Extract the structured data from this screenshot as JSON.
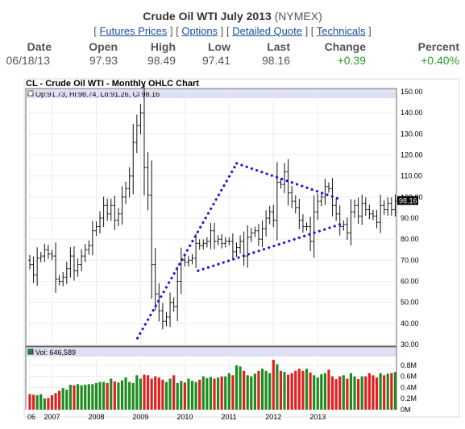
{
  "header": {
    "title": "Crude Oil WTI July 2013",
    "exchange": "(NYMEX)",
    "links": [
      "Futures Prices",
      "Options",
      "Detailed Quote",
      "Technicals"
    ]
  },
  "quote": {
    "headers": [
      "Date",
      "Open",
      "High",
      "Low",
      "Last",
      "Change",
      "Percent"
    ],
    "values": [
      "06/18/13",
      "97.93",
      "98.49",
      "97.41",
      "98.16",
      "+0.39",
      "+0.40%"
    ],
    "positive_color": "#2a9b2a"
  },
  "chart_data": [
    {
      "type": "ohlc",
      "title": "CL - Crude Oil WTI - Monthly OHLC Chart",
      "info": "Op:91.73, Hi:98.74, Lo:91.26, Cl:98.16",
      "last_price_label": "98.16",
      "ylim": [
        30,
        150
      ],
      "yticks": [
        "150.00",
        "140.00",
        "130.00",
        "120.00",
        "110.00",
        "100.00",
        "90.00",
        "80.00",
        "70.00",
        "60.00",
        "50.00",
        "40.00",
        "30.00"
      ],
      "xticks": [
        "06",
        "2007",
        "2008",
        "2009",
        "2010",
        "2011",
        "2012",
        "2013"
      ],
      "close": [
        68,
        63,
        71,
        72,
        75,
        73,
        72,
        61,
        60,
        62,
        66,
        72,
        65,
        68,
        72,
        75,
        77,
        84,
        86,
        90,
        96,
        92,
        96,
        89,
        92,
        100,
        104,
        110,
        126,
        134,
        140,
        114,
        101,
        68,
        54,
        46,
        41,
        43,
        50,
        48,
        60,
        70,
        69,
        70,
        71,
        78,
        77,
        78,
        79,
        84,
        79,
        80,
        78,
        79,
        79,
        74,
        76,
        79,
        72,
        81,
        83,
        84,
        80,
        85,
        90,
        93,
        89,
        107,
        106,
        112,
        102,
        98,
        95,
        89,
        86,
        86,
        79,
        93,
        98,
        100,
        105,
        104,
        96,
        92,
        86,
        87,
        83,
        93,
        96,
        91,
        97,
        94,
        92,
        91,
        88,
        96,
        94,
        97,
        94,
        98
      ],
      "trendlines": [
        {
          "from": [
            33,
            2008.93
          ],
          "to": [
            116,
            2011.17
          ]
        },
        {
          "from": [
            116,
            2011.17
          ],
          "to": [
            99,
            2013.5
          ]
        },
        {
          "from": [
            65,
            2010.3
          ],
          "to": [
            87,
            2013.5
          ]
        }
      ],
      "trendline_color": "#1a1ad6",
      "up_color": "#1e8c1e",
      "down_color": "#e02020"
    },
    {
      "type": "bar",
      "title": "Vol: 646,589",
      "ylim": [
        0,
        0.9
      ],
      "yticks": [
        "0.8M",
        "0.6M",
        "0.4M",
        "0.2M",
        "0M"
      ],
      "values": [
        0.28,
        0.27,
        0.26,
        0.28,
        0.2,
        0.21,
        0.26,
        0.3,
        0.34,
        0.39,
        0.36,
        0.45,
        0.44,
        0.46,
        0.44,
        0.45,
        0.46,
        0.46,
        0.48,
        0.5,
        0.5,
        0.48,
        0.56,
        0.51,
        0.49,
        0.53,
        0.58,
        0.5,
        0.48,
        0.62,
        0.56,
        0.63,
        0.62,
        0.56,
        0.6,
        0.58,
        0.54,
        0.5,
        0.56,
        0.62,
        0.48,
        0.52,
        0.49,
        0.56,
        0.52,
        0.5,
        0.54,
        0.6,
        0.57,
        0.59,
        0.56,
        0.58,
        0.6,
        0.6,
        0.66,
        0.62,
        0.8,
        0.78,
        0.7,
        0.62,
        0.6,
        0.65,
        0.7,
        0.74,
        0.7,
        0.66,
        0.9,
        0.82,
        0.7,
        0.68,
        0.63,
        0.66,
        0.7,
        0.74,
        0.7,
        0.74,
        0.67,
        0.62,
        0.58,
        0.64,
        0.66,
        0.72,
        0.6,
        0.55,
        0.6,
        0.62,
        0.56,
        0.66,
        0.6,
        0.55,
        0.6,
        0.6,
        0.66,
        0.62,
        0.58,
        0.66,
        0.62,
        0.65,
        0.66,
        0.68
      ]
    }
  ]
}
